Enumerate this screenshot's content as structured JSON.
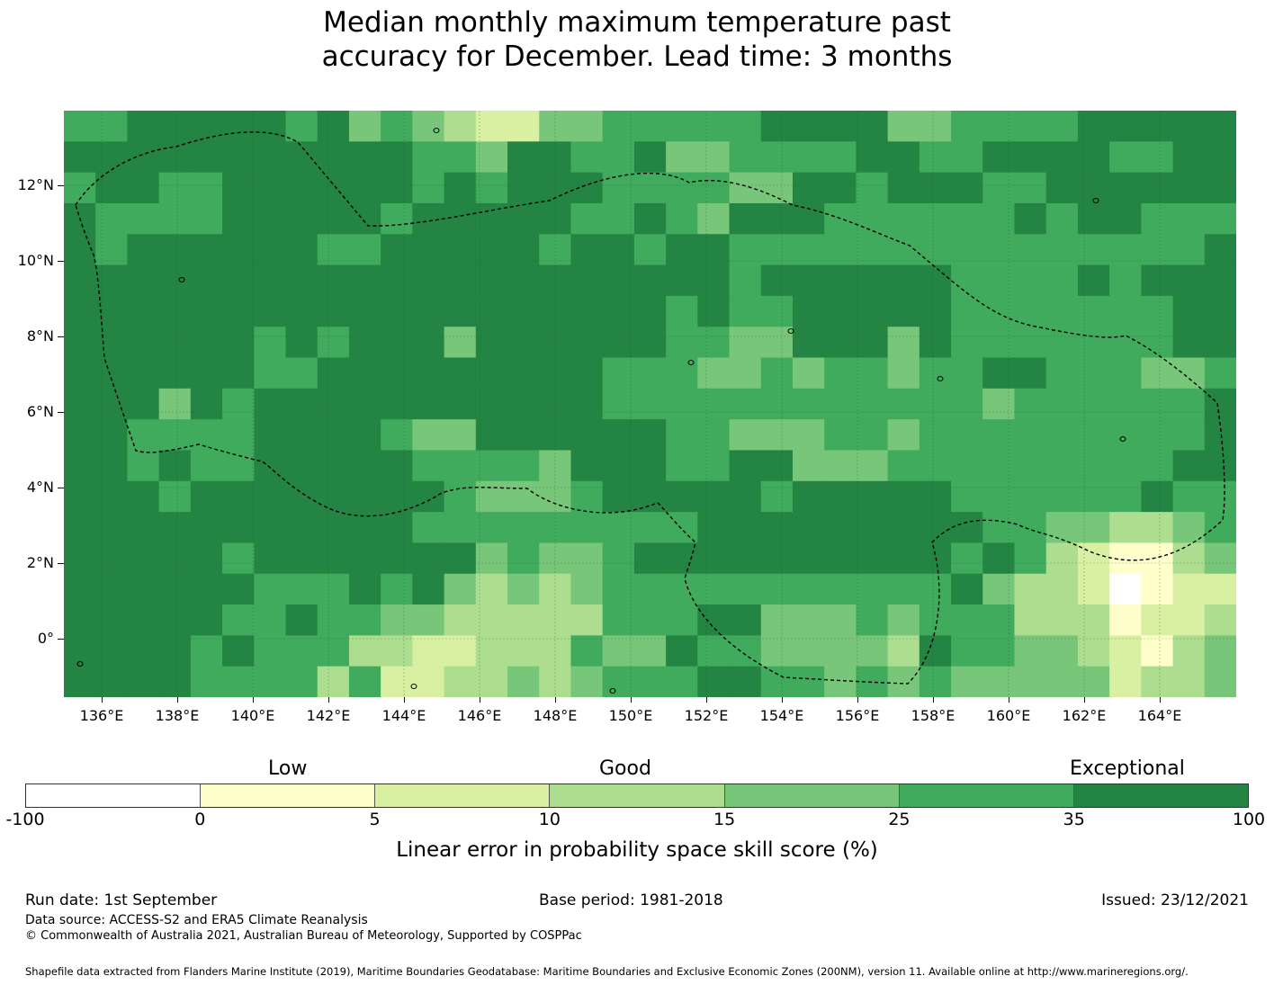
{
  "title": {
    "line1": "Median monthly maximum temperature past",
    "line2": "accuracy for December. Lead time: 3 months"
  },
  "map": {
    "lat_labels": [
      "12°N",
      "10°N",
      "8°N",
      "6°N",
      "4°N",
      "2°N",
      "0°"
    ],
    "lon_labels": [
      "136°E",
      "138°E",
      "140°E",
      "142°E",
      "144°E",
      "146°E",
      "148°E",
      "150°E",
      "152°E",
      "154°E",
      "156°E",
      "158°E",
      "160°E",
      "162°E",
      "164°E"
    ],
    "grid_note_cols": 37,
    "grid_note_rows": 19
  },
  "legend": {
    "categories": [
      "Low",
      "Good",
      "Exceptional"
    ],
    "ticks": [
      "-100",
      "0",
      "5",
      "10",
      "15",
      "25",
      "35",
      "100"
    ],
    "colors": [
      "#ffffff",
      "#ffffcc",
      "#d9f0a3",
      "#addd8e",
      "#78c679",
      "#41ab5d",
      "#238443"
    ],
    "title": "Linear error in probability space skill score (%)"
  },
  "footer": {
    "run_date": "Run date: 1st September",
    "base_period": "Base period: 1981-2018",
    "issued": "Issued: 23/12/2021",
    "data_source": "Data source: ACCESS-S2 and ERA5 Climate Reanalysis",
    "copyright": "© Commonwealth of Australia 2021, Australian Bureau of Meteorology, Supported by COSPPac",
    "shapefile": "Shapefile data extracted from Flanders Marine Institute (2019), Maritime Boundaries Geodatabase: Maritime Boundaries and Exclusive Economic Zones (200NM), version 11. Available online at http://www.marineregions.org/."
  }
}
